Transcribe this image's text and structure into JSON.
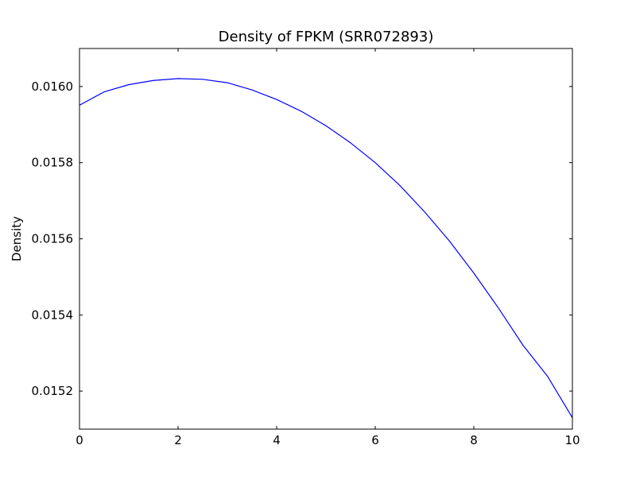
{
  "chart_data": {
    "type": "line",
    "title": "Density of FPKM (SRR072893)",
    "xlabel": "",
    "ylabel": "Density",
    "xlim": [
      0,
      10
    ],
    "ylim": [
      0.0151,
      0.0161
    ],
    "xticks": [
      0,
      2,
      4,
      6,
      8,
      10
    ],
    "xtick_labels": [
      "0",
      "2",
      "4",
      "6",
      "8",
      "10"
    ],
    "yticks": [
      0.0152,
      0.0154,
      0.0156,
      0.0158,
      0.016
    ],
    "ytick_labels": [
      "0.0152",
      "0.0154",
      "0.0156",
      "0.0158",
      "0.0160"
    ],
    "grid": false,
    "series": [
      {
        "color": "#0000ff",
        "x": [
          0,
          0.5,
          1,
          1.5,
          2,
          2.5,
          3,
          3.5,
          4,
          4.5,
          5,
          5.5,
          6,
          6.5,
          7,
          7.5,
          8,
          8.5,
          9,
          9.5,
          10
        ],
        "y": [
          0.015951,
          0.015986,
          0.016005,
          0.016016,
          0.016021,
          0.016019,
          0.01601,
          0.015991,
          0.015966,
          0.015935,
          0.015897,
          0.015852,
          0.0158,
          0.01574,
          0.015671,
          0.015595,
          0.01551,
          0.015418,
          0.01532,
          0.015238,
          0.01513
        ]
      }
    ]
  }
}
